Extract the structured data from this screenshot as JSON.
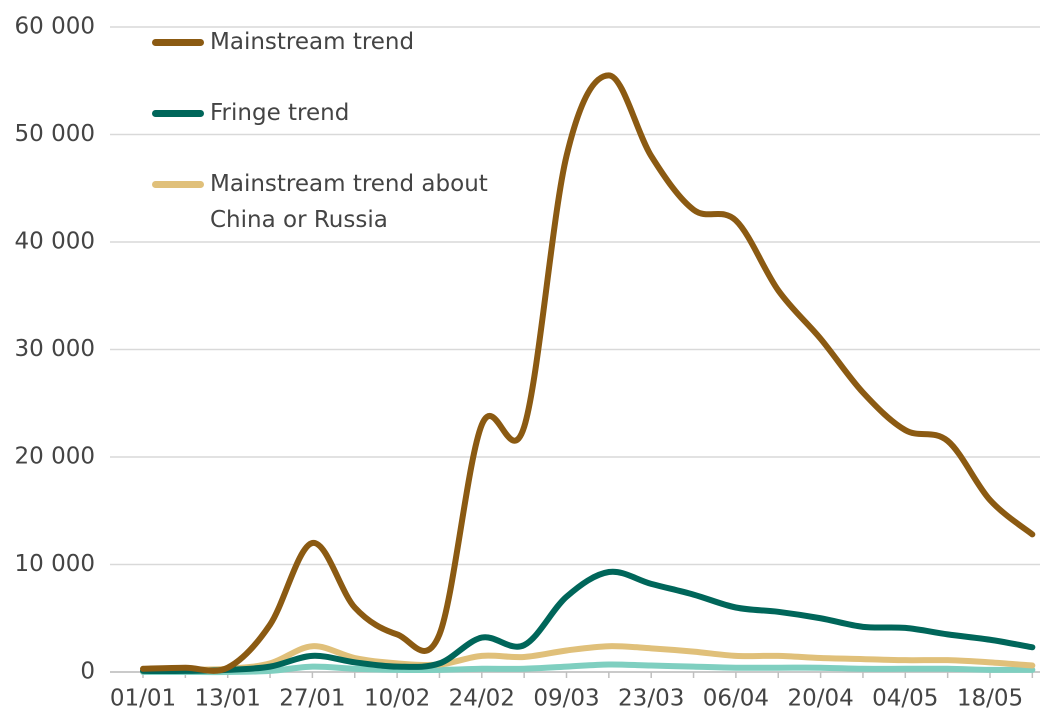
{
  "chart_data": {
    "type": "line",
    "categories": [
      "01/01",
      null,
      "13/01",
      null,
      "27/01",
      null,
      "10/02",
      null,
      "24/02",
      null,
      "09/03",
      null,
      "23/03",
      null,
      "06/04",
      null,
      "20/04",
      null,
      "04/05",
      null,
      "18/05",
      null
    ],
    "series": [
      {
        "name": "Mainstream trend",
        "color": "#8b5a12",
        "values": [
          300,
          400,
          400,
          4400,
          12000,
          6000,
          3500,
          3500,
          23000,
          22800,
          48000,
          55500,
          48000,
          43000,
          42000,
          35500,
          31000,
          26000,
          22500,
          21500,
          16000,
          12800
        ]
      },
      {
        "name": "Fringe trend",
        "color": "#00665a",
        "values": [
          100,
          100,
          200,
          500,
          1500,
          900,
          500,
          800,
          3200,
          2500,
          7000,
          9300,
          8200,
          7200,
          6000,
          5600,
          5000,
          4200,
          4100,
          3500,
          3000,
          2300
        ]
      },
      {
        "name": "Mainstream trend about China or Russia",
        "color": "#e0c07a",
        "values": [
          100,
          200,
          300,
          800,
          2400,
          1300,
          800,
          700,
          1500,
          1400,
          2000,
          2400,
          2200,
          1900,
          1500,
          1500,
          1300,
          1200,
          1100,
          1100,
          900,
          600
        ]
      },
      {
        "color": "#7fcfc0",
        "values": [
          0,
          0,
          0,
          100,
          500,
          300,
          200,
          200,
          300,
          300,
          500,
          700,
          600,
          500,
          400,
          400,
          400,
          300,
          300,
          300,
          200,
          200
        ]
      }
    ],
    "ylim": [
      0,
      60000
    ],
    "yticks": [
      0,
      {
        "value": 10000,
        "label": "10 000"
      },
      {
        "value": 20000,
        "label": "20 000"
      },
      {
        "value": 30000,
        "label": "30 000"
      },
      {
        "value": 40000,
        "label": "40 000"
      },
      {
        "value": 50000,
        "label": "50 000"
      },
      {
        "value": 60000,
        "label": "60 000"
      }
    ],
    "grid": true,
    "legend": "top-left"
  }
}
